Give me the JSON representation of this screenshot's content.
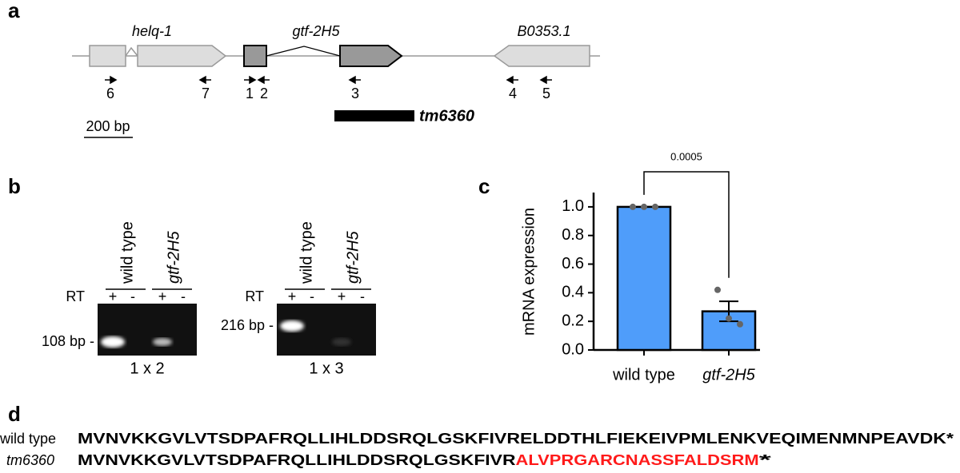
{
  "panel_a": {
    "label": "a",
    "genes": [
      "helq-1",
      "gtf-2H5",
      "B0353.1"
    ],
    "primers": [
      "6",
      "7",
      "1",
      "2",
      "3",
      "4",
      "5"
    ],
    "allele": "tm6360",
    "scale_bar": "200 bp"
  },
  "panel_b": {
    "label": "b",
    "gels": [
      {
        "lanes": [
          "wild type",
          "gtf-2H5"
        ],
        "rt_label": "RT",
        "rt": [
          "+",
          "-",
          "+",
          "-"
        ],
        "band_size": "108 bp -",
        "primers": "1 x 2"
      },
      {
        "lanes": [
          "wild type",
          "gtf-2H5"
        ],
        "rt_label": "RT",
        "rt": [
          "+",
          "-",
          "+",
          "-"
        ],
        "band_size": "216 bp -",
        "primers": "1 x 3"
      }
    ]
  },
  "chart_data": {
    "type": "bar",
    "panel_label": "c",
    "ylabel": "mRNA expression",
    "categories": [
      "wild type",
      "gtf-2H5"
    ],
    "values": [
      1.0,
      0.27
    ],
    "errors": [
      0,
      0.07
    ],
    "points": [
      [
        1,
        1,
        1
      ],
      [
        0.42,
        0.22,
        0.18
      ]
    ],
    "color": "#4f9dfa",
    "point_color": "#666666",
    "ylim": [
      0,
      1.1
    ],
    "yticks": [
      {
        "value": 0,
        "label": "0.0"
      },
      {
        "value": 0.2,
        "label": "0.2"
      },
      {
        "value": 0.4,
        "label": "0.4"
      },
      {
        "value": 0.6,
        "label": "0.6"
      },
      {
        "value": 0.8,
        "label": "0.8"
      },
      {
        "value": 1,
        "label": "1.0"
      }
    ],
    "annotation": "0.0005"
  },
  "panel_d": {
    "label": "d",
    "rows": [
      {
        "label": "wild type",
        "segments": [
          {
            "text": "MVNVKKGVLVTSDPAFRQLLIHLDDSRQLGSKFIVRELDDTHLFIEKEIVPMLENKVEQIMENMNPEAVDK*",
            "color": "#000000"
          }
        ]
      },
      {
        "label": "tm6360",
        "segments": [
          {
            "text": "MVNVKKGVLVTSDPAFRQLLIHLDDSRQLGSKFIVR",
            "color": "#000000"
          },
          {
            "text": "ALVPRGARCNASSFALDSRM",
            "color": "#ff1a1a"
          },
          {
            "text": "*",
            "color": "#000000"
          }
        ]
      }
    ]
  }
}
